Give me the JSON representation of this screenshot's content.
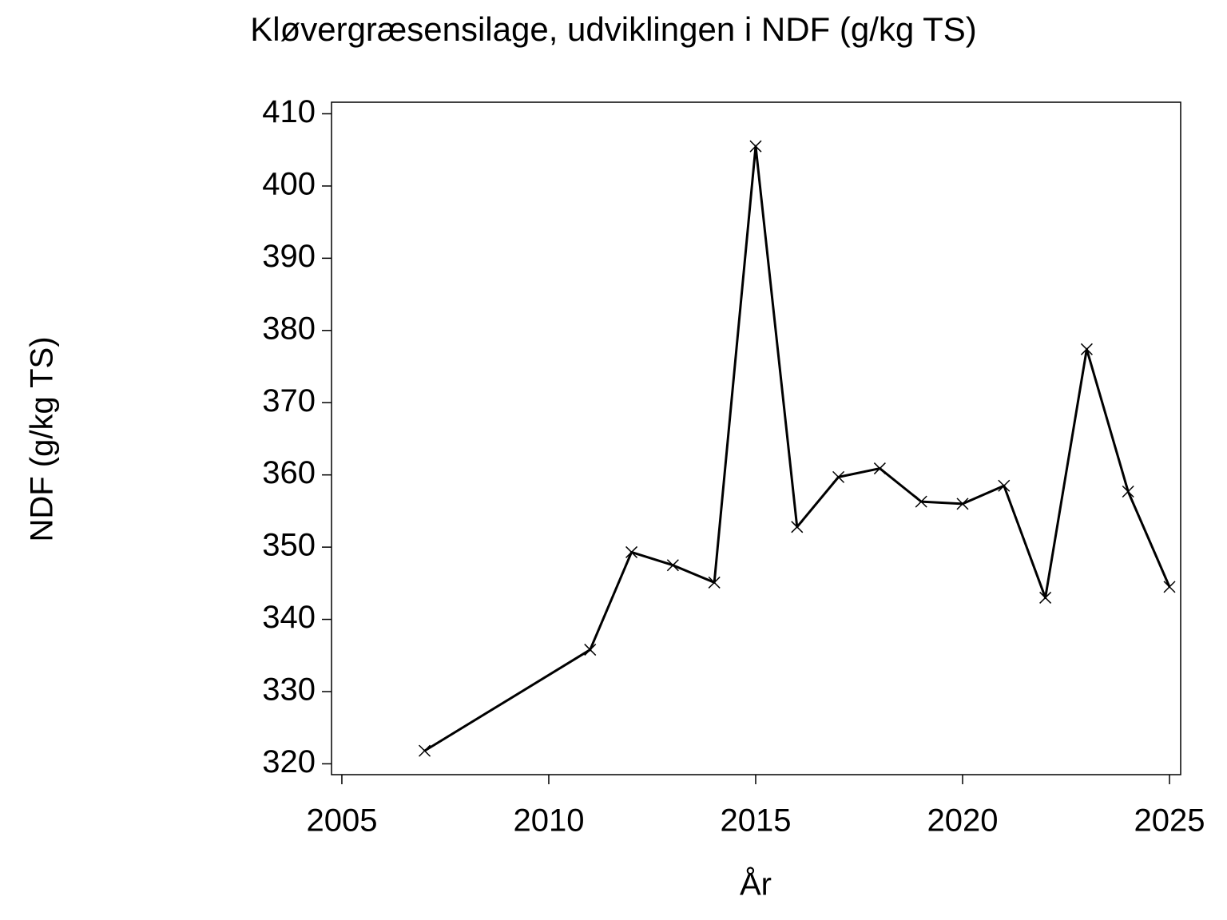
{
  "chart_data": {
    "type": "line",
    "title": "Kløvergræsensilage,  udviklingen  i  NDF  (g/kg  TS)",
    "x_label": "År",
    "y_label": "NDF  (g/kg  TS)",
    "x": [
      2007,
      2011,
      2012,
      2013,
      2014,
      2015,
      2016,
      2017,
      2018,
      2019,
      2020,
      2021,
      2022,
      2023,
      2024,
      2025
    ],
    "series": [
      {
        "color": "#000000",
        "values": [
          321.8,
          335.8,
          349.3,
          347.5,
          345.1,
          405.5,
          352.8,
          359.7,
          360.9,
          356.3,
          356.0,
          358.5,
          343.0,
          377.4,
          357.7,
          344.5
        ]
      }
    ],
    "xlim": [
      2004.75,
      2025.27
    ],
    "ylim": [
      318.5,
      411.6
    ],
    "xticks": [
      2005,
      2010,
      2015,
      2020,
      2025
    ],
    "yticks": [
      320,
      330,
      340,
      350,
      360,
      370,
      380,
      390,
      400,
      410
    ],
    "marker": "x"
  }
}
